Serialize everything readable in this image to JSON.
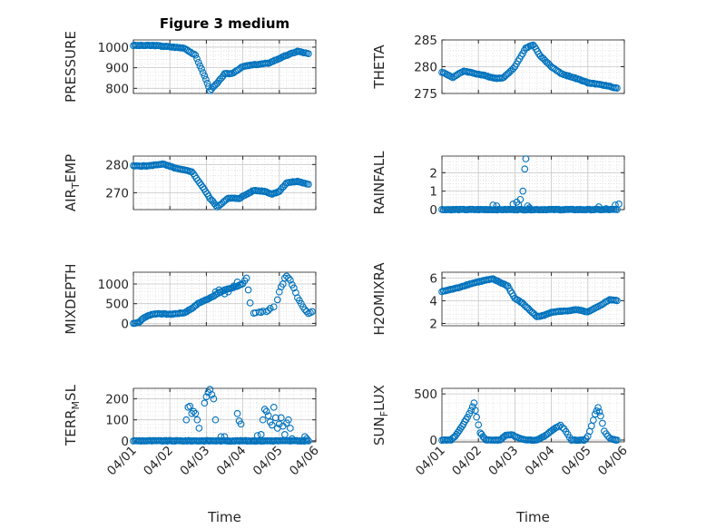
{
  "figure": {
    "background": "#ffffff",
    "marker_color": "#0072bd",
    "axis_color": "#262626",
    "grid_color": "#d9d9d9"
  },
  "chart_data": [
    {
      "type": "scatter",
      "title": "Figure 3 medium",
      "ylabel": "PRESSURE",
      "xlabel": "",
      "x_ticks": [
        "04/01",
        "04/02",
        "04/03",
        "04/04",
        "04/05",
        "04/06"
      ],
      "show_x_ticklabels": false,
      "x_range": [
        0,
        5
      ],
      "ylim": [
        775,
        1035
      ],
      "y_ticks": [
        800,
        900,
        1000
      ],
      "grid": "minor",
      "keyframes": [
        [
          0,
          1008
        ],
        [
          0.6,
          1008
        ],
        [
          1.4,
          995
        ],
        [
          1.7,
          960
        ],
        [
          1.95,
          860
        ],
        [
          2.1,
          790
        ],
        [
          2.3,
          825
        ],
        [
          2.5,
          870
        ],
        [
          2.7,
          872
        ],
        [
          3.0,
          905
        ],
        [
          3.2,
          912
        ],
        [
          3.5,
          918
        ],
        [
          3.7,
          922
        ],
        [
          4.0,
          945
        ],
        [
          4.2,
          960
        ],
        [
          4.5,
          980
        ],
        [
          4.8,
          968
        ]
      ]
    },
    {
      "type": "scatter",
      "title": "",
      "ylabel": "THETA",
      "xlabel": "",
      "x_ticks": [
        "04/01",
        "04/02",
        "04/03",
        "04/04",
        "04/05",
        "04/06"
      ],
      "show_x_ticklabels": false,
      "x_range": [
        0,
        5
      ],
      "ylim": [
        275,
        285
      ],
      "y_ticks": [
        275,
        280,
        285
      ],
      "grid": "minor",
      "keyframes": [
        [
          0,
          279
        ],
        [
          0.3,
          278
        ],
        [
          0.6,
          279.2
        ],
        [
          1.0,
          278.6
        ],
        [
          1.5,
          277.8
        ],
        [
          1.7,
          278
        ],
        [
          2.0,
          280
        ],
        [
          2.3,
          283.5
        ],
        [
          2.5,
          284.1
        ],
        [
          2.7,
          282
        ],
        [
          3.0,
          280
        ],
        [
          3.3,
          278.6
        ],
        [
          3.6,
          278
        ],
        [
          4.0,
          277
        ],
        [
          4.4,
          276.6
        ],
        [
          4.8,
          276
        ]
      ]
    },
    {
      "type": "scatter",
      "title": "",
      "ylabel": "AIR_TEMP",
      "xlabel": "",
      "x_ticks": [
        "04/01",
        "04/02",
        "04/03",
        "04/04",
        "04/05",
        "04/06"
      ],
      "show_x_ticklabels": false,
      "x_range": [
        0,
        5
      ],
      "ylim": [
        264,
        283
      ],
      "y_ticks": [
        270,
        280
      ],
      "grid": "minor",
      "keyframes": [
        [
          0,
          279.5
        ],
        [
          0.4,
          279.5
        ],
        [
          0.8,
          280.2
        ],
        [
          1.2,
          278.5
        ],
        [
          1.6,
          277.5
        ],
        [
          1.9,
          272
        ],
        [
          2.1,
          268
        ],
        [
          2.3,
          265
        ],
        [
          2.6,
          268
        ],
        [
          2.9,
          268
        ],
        [
          3.3,
          270.8
        ],
        [
          3.6,
          270.5
        ],
        [
          3.8,
          269.5
        ],
        [
          4.0,
          270.5
        ],
        [
          4.2,
          273.5
        ],
        [
          4.5,
          274
        ],
        [
          4.8,
          273
        ]
      ]
    },
    {
      "type": "scatter",
      "title": "",
      "ylabel": "RAINFALL",
      "xlabel": "",
      "x_ticks": [
        "04/01",
        "04/02",
        "04/03",
        "04/04",
        "04/05",
        "04/06"
      ],
      "show_x_ticklabels": false,
      "x_range": [
        0,
        5
      ],
      "ylim": [
        0,
        2.9
      ],
      "y_ticks": [
        0,
        1,
        2
      ],
      "grid": "minor",
      "keyframes": [
        [
          0,
          0
        ],
        [
          4.8,
          0
        ]
      ],
      "extra_points": [
        [
          1.4,
          0.25
        ],
        [
          1.5,
          0.2
        ],
        [
          1.95,
          0.3
        ],
        [
          2.05,
          0.4
        ],
        [
          2.1,
          0.25
        ],
        [
          2.15,
          0.55
        ],
        [
          2.22,
          1.0
        ],
        [
          2.27,
          2.2
        ],
        [
          2.3,
          2.75
        ],
        [
          2.35,
          0.2
        ],
        [
          2.4,
          0.1
        ],
        [
          4.3,
          0.15
        ],
        [
          4.5,
          0.05
        ],
        [
          4.75,
          0.25
        ],
        [
          4.85,
          0.3
        ]
      ]
    },
    {
      "type": "scatter",
      "title": "",
      "ylabel": "MIXDEPTH",
      "xlabel": "",
      "x_ticks": [
        "04/01",
        "04/02",
        "04/03",
        "04/04",
        "04/05",
        "04/06"
      ],
      "show_x_ticklabels": false,
      "x_range": [
        0,
        5
      ],
      "ylim": [
        -60,
        1300
      ],
      "y_ticks": [
        0,
        500,
        1000
      ],
      "grid": "minor",
      "keyframes": [
        [
          0,
          0
        ],
        [
          0.15,
          30
        ],
        [
          0.3,
          150
        ],
        [
          0.5,
          230
        ],
        [
          0.7,
          250
        ],
        [
          1.0,
          230
        ],
        [
          1.2,
          250
        ],
        [
          1.4,
          270
        ],
        [
          1.6,
          380
        ],
        [
          1.8,
          520
        ],
        [
          2.0,
          600
        ],
        [
          2.2,
          700
        ],
        [
          2.5,
          850
        ],
        [
          2.7,
          900
        ],
        [
          3.0,
          1000
        ],
        [
          3.1,
          1150
        ]
      ],
      "extra_points": [
        [
          2.25,
          800
        ],
        [
          2.35,
          850
        ],
        [
          2.5,
          750
        ],
        [
          2.6,
          800
        ],
        [
          2.75,
          950
        ],
        [
          2.85,
          1050
        ],
        [
          3.15,
          850
        ],
        [
          3.2,
          520
        ],
        [
          3.3,
          260
        ],
        [
          3.5,
          280
        ],
        [
          3.7,
          330
        ],
        [
          3.85,
          420
        ],
        [
          3.95,
          600
        ],
        [
          4.0,
          800
        ],
        [
          4.1,
          1000
        ],
        [
          4.2,
          1200
        ],
        [
          4.3,
          1100
        ],
        [
          4.4,
          900
        ],
        [
          4.5,
          650
        ],
        [
          4.6,
          500
        ],
        [
          4.7,
          350
        ],
        [
          4.8,
          250
        ],
        [
          4.9,
          300
        ],
        [
          3.35,
          270
        ],
        [
          3.45,
          290
        ],
        [
          3.55,
          310
        ],
        [
          3.65,
          300
        ],
        [
          3.75,
          380
        ],
        [
          4.05,
          930
        ],
        [
          4.15,
          1150
        ],
        [
          4.25,
          1150
        ],
        [
          4.35,
          980
        ],
        [
          4.45,
          780
        ],
        [
          4.55,
          580
        ],
        [
          4.65,
          420
        ],
        [
          4.75,
          300
        ],
        [
          4.85,
          270
        ]
      ]
    },
    {
      "type": "scatter",
      "title": "",
      "ylabel": "H2OMIXRA",
      "xlabel": "",
      "x_ticks": [
        "04/01",
        "04/02",
        "04/03",
        "04/04",
        "04/05",
        "04/06"
      ],
      "show_x_ticklabels": false,
      "x_range": [
        0,
        5
      ],
      "ylim": [
        1.8,
        6.5
      ],
      "y_ticks": [
        2,
        4,
        6
      ],
      "grid": "minor",
      "keyframes": [
        [
          0,
          4.8
        ],
        [
          0.4,
          5.1
        ],
        [
          0.8,
          5.5
        ],
        [
          1.2,
          5.8
        ],
        [
          1.4,
          5.9
        ],
        [
          1.6,
          5.6
        ],
        [
          1.8,
          5.3
        ],
        [
          2.0,
          4.2
        ],
        [
          2.2,
          3.8
        ],
        [
          2.4,
          3.2
        ],
        [
          2.6,
          2.6
        ],
        [
          2.8,
          2.7
        ],
        [
          3.0,
          3.0
        ],
        [
          3.4,
          3.1
        ],
        [
          3.7,
          3.2
        ],
        [
          4.0,
          3.0
        ],
        [
          4.3,
          3.5
        ],
        [
          4.6,
          4.1
        ],
        [
          4.8,
          4.0
        ]
      ]
    },
    {
      "type": "scatter",
      "title": "",
      "ylabel": "TERR_MSL",
      "xlabel": "Time",
      "x_ticks": [
        "04/01",
        "04/02",
        "04/03",
        "04/04",
        "04/05",
        "04/06"
      ],
      "show_x_ticklabels": true,
      "x_range": [
        0,
        5
      ],
      "ylim": [
        -5,
        250
      ],
      "y_ticks": [
        0,
        100,
        200
      ],
      "grid": "minor",
      "keyframes": [
        [
          0,
          0
        ],
        [
          4.8,
          0
        ]
      ],
      "extra_points": [
        [
          1.45,
          100
        ],
        [
          1.5,
          160
        ],
        [
          1.55,
          165
        ],
        [
          1.6,
          130
        ],
        [
          1.65,
          140
        ],
        [
          1.7,
          130
        ],
        [
          1.75,
          100
        ],
        [
          1.8,
          60
        ],
        [
          1.95,
          180
        ],
        [
          2.0,
          210
        ],
        [
          2.05,
          230
        ],
        [
          2.1,
          245
        ],
        [
          2.15,
          220
        ],
        [
          2.2,
          200
        ],
        [
          2.25,
          100
        ],
        [
          2.4,
          20
        ],
        [
          2.5,
          20
        ],
        [
          2.6,
          0
        ],
        [
          2.85,
          130
        ],
        [
          2.9,
          95
        ],
        [
          2.95,
          80
        ],
        [
          3.3,
          0
        ],
        [
          3.5,
          30
        ],
        [
          3.6,
          150
        ],
        [
          3.65,
          140
        ],
        [
          3.7,
          120
        ],
        [
          3.75,
          90
        ],
        [
          3.8,
          75
        ],
        [
          3.85,
          160
        ],
        [
          3.9,
          110
        ],
        [
          3.95,
          60
        ],
        [
          4.0,
          80
        ],
        [
          4.05,
          110
        ],
        [
          4.1,
          70
        ],
        [
          4.15,
          30
        ],
        [
          4.2,
          85
        ],
        [
          4.25,
          100
        ],
        [
          4.3,
          60
        ],
        [
          4.35,
          10
        ],
        [
          4.5,
          0
        ],
        [
          4.7,
          20
        ],
        [
          4.75,
          10
        ],
        [
          3.4,
          25
        ],
        [
          3.55,
          100
        ]
      ]
    },
    {
      "type": "scatter",
      "title": "",
      "ylabel": "SUN_FLUX",
      "xlabel": "Time",
      "x_ticks": [
        "04/01",
        "04/02",
        "04/03",
        "04/04",
        "04/05",
        "04/06"
      ],
      "show_x_ticklabels": true,
      "x_range": [
        0,
        5
      ],
      "ylim": [
        -20,
        560
      ],
      "y_ticks": [
        0,
        500
      ],
      "grid": "minor",
      "keyframes": [
        [
          0,
          0
        ],
        [
          0.25,
          0
        ],
        [
          0.4,
          60
        ],
        [
          0.55,
          150
        ],
        [
          0.7,
          250
        ],
        [
          0.8,
          320
        ],
        [
          0.88,
          400
        ],
        [
          0.95,
          250
        ],
        [
          1.05,
          80
        ],
        [
          1.2,
          0
        ],
        [
          1.6,
          0
        ],
        [
          1.75,
          50
        ],
        [
          1.9,
          60
        ],
        [
          2.0,
          40
        ],
        [
          2.1,
          20
        ],
        [
          2.3,
          0
        ],
        [
          2.6,
          0
        ],
        [
          2.8,
          40
        ],
        [
          3.0,
          100
        ],
        [
          3.15,
          140
        ],
        [
          3.25,
          160
        ],
        [
          3.35,
          120
        ],
        [
          3.45,
          60
        ],
        [
          3.55,
          0
        ],
        [
          3.9,
          0
        ],
        [
          4.0,
          40
        ],
        [
          4.1,
          150
        ],
        [
          4.2,
          280
        ],
        [
          4.28,
          350
        ],
        [
          4.35,
          260
        ],
        [
          4.45,
          100
        ],
        [
          4.55,
          40
        ],
        [
          4.65,
          10
        ],
        [
          4.8,
          0
        ]
      ]
    }
  ]
}
